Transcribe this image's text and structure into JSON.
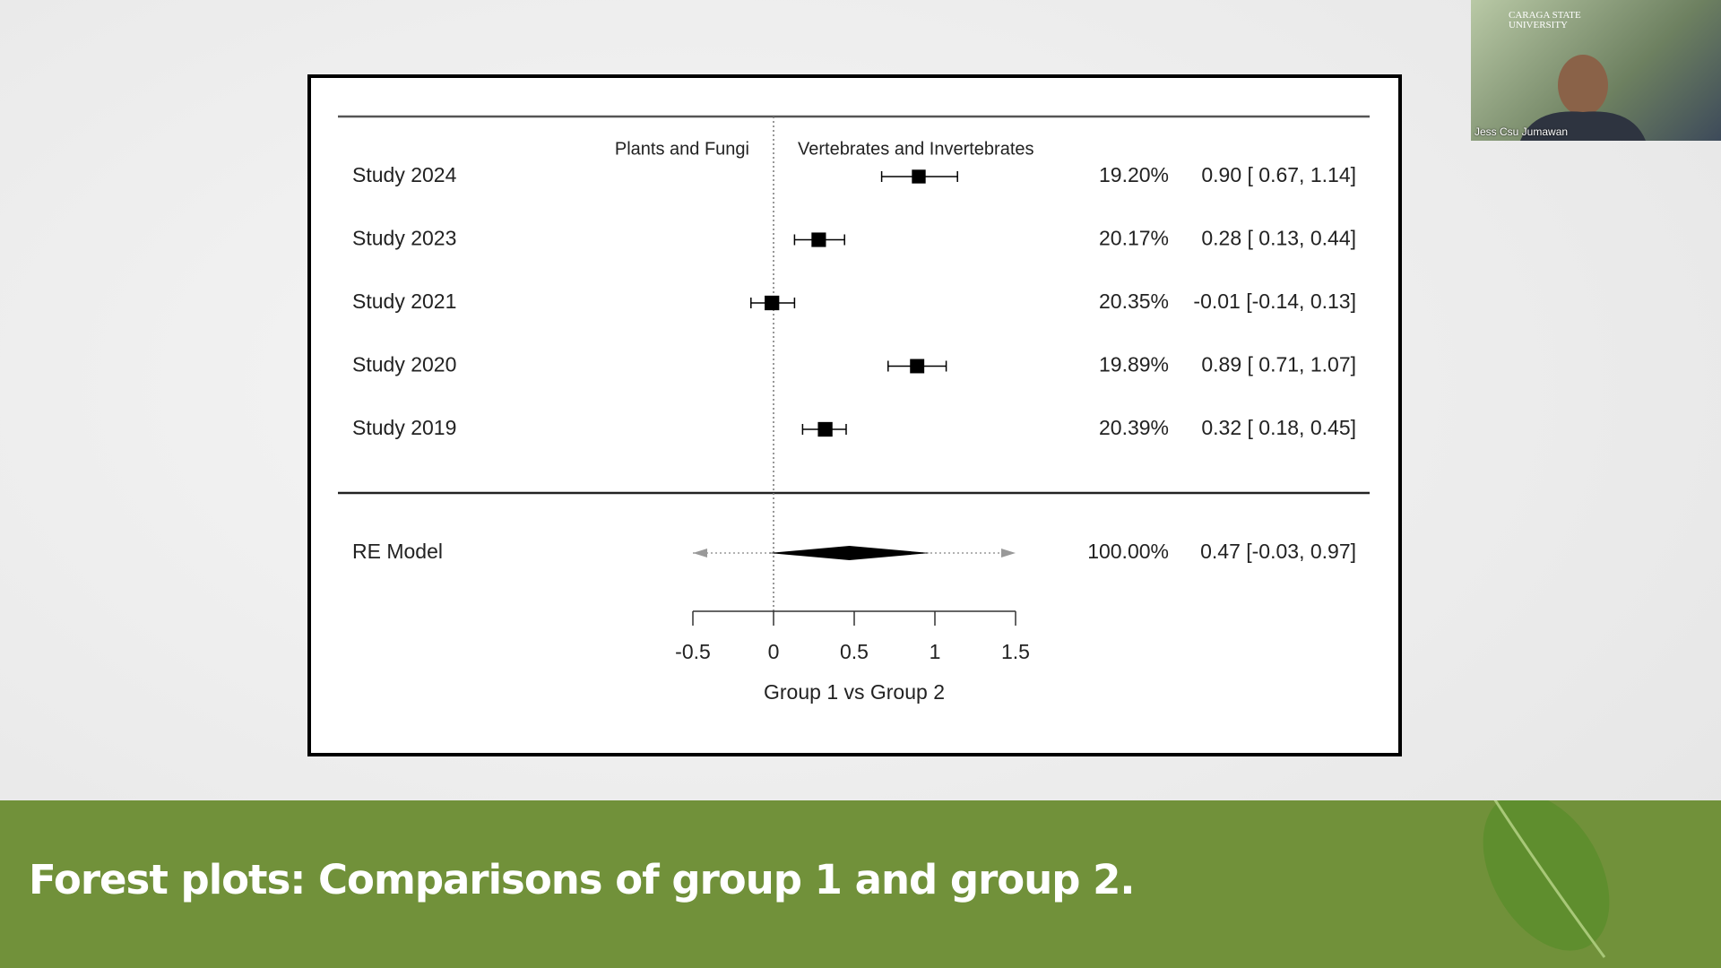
{
  "chart_data": {
    "type": "forest",
    "left_label": "Plants and Fungi",
    "right_label": "Vertebrates and Invertebrates",
    "xlabel": "Group 1 vs Group 2",
    "xlim": [
      -0.5,
      1.5
    ],
    "xticks": [
      -0.5,
      0,
      0.5,
      1,
      1.5
    ],
    "categories": [
      "Study 2024",
      "Study 2023",
      "Study 2021",
      "Study 2020",
      "Study 2019"
    ],
    "values": [
      0.9,
      0.28,
      -0.01,
      0.89,
      0.32
    ],
    "ci_low": [
      0.67,
      0.13,
      -0.14,
      0.71,
      0.18
    ],
    "ci_high": [
      1.14,
      0.44,
      0.13,
      1.07,
      0.45
    ],
    "weights": [
      19.2,
      20.17,
      20.35,
      19.89,
      20.39
    ],
    "weight_labels": [
      "19.20%",
      "20.17%",
      "20.35%",
      "19.89%",
      "20.39%"
    ],
    "value_labels": [
      "0.90 [ 0.67, 1.14]",
      "0.28 [ 0.13, 0.44]",
      "-0.01 [-0.14, 0.13]",
      "0.89 [ 0.71, 1.07]",
      "0.32 [ 0.18, 0.45]"
    ],
    "summary": {
      "name": "RE Model",
      "value": 0.47,
      "ci_low": -0.03,
      "ci_high": 0.97,
      "weight": 100,
      "weight_label": "100.00%",
      "value_label": "0.47 [-0.03, 0.97]"
    },
    "color": "#000000"
  },
  "caption": "Forest plots: Comparisons of group 1 and group 2.",
  "webcam": {
    "logo": "CARAGA STATE UNIVERSITY",
    "name": "Jess Csu Jumawan"
  }
}
